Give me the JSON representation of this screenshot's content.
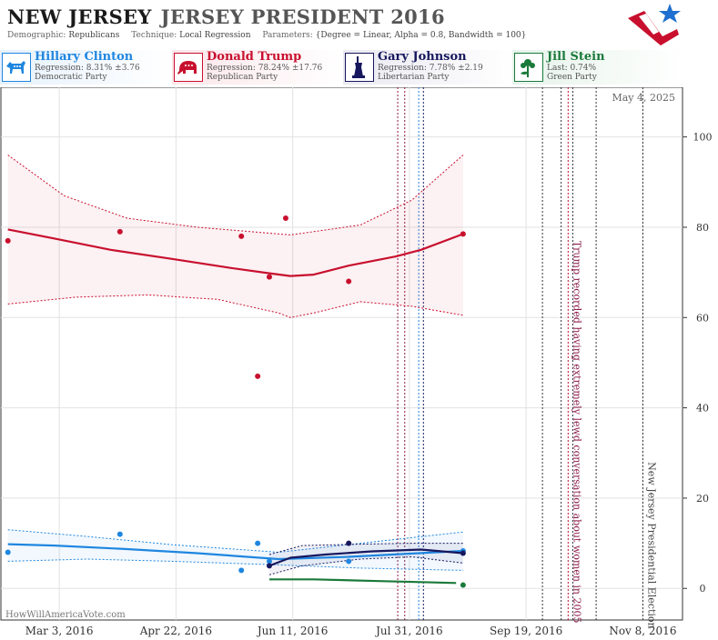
{
  "header": {
    "state": "NEW JERSEY",
    "race": "JERSEY PRESIDENT 2016",
    "demographic_label": "Demographic:",
    "demographic_value": "Republicans",
    "technique_label": "Technique:",
    "technique_value": "Local Regression",
    "parameters_label": "Parameters:",
    "parameters_value": "{Degree = Linear, Alpha = 0.8, Bandwidth = 100}"
  },
  "candidates": [
    {
      "name": "Hillary Clinton",
      "stat": "Regression: 8.31% ±3.76",
      "party": "Democratic Party",
      "color": "#1f86e0",
      "bg": "#e6f1fc",
      "icon": "donkey-icon"
    },
    {
      "name": "Donald Trump",
      "stat": "Regression: 78.24% ±17.76",
      "party": "Republican Party",
      "color": "#c8102e",
      "bg": "#fbe6ea",
      "icon": "elephant-icon"
    },
    {
      "name": "Gary Johnson",
      "stat": "Regression: 7.78% ±2.19",
      "party": "Libertarian Party",
      "color": "#17175e",
      "bg": "#e9e9f1",
      "icon": "statue-of-liberty-icon"
    },
    {
      "name": "Jill Stein",
      "stat": "Last: 0.74%",
      "party": "Green Party",
      "color": "#1a7a3a",
      "bg": "#e6f3ea",
      "icon": "flower-icon"
    }
  ],
  "chart": {
    "date_stamp": "May 4, 2025",
    "watermark": "HowWillAmericaVote.com",
    "annotation_1": "Trump recorded having extremely lewd conversation about women in 2005",
    "annotation_2": "New Jersey Presidential Election"
  },
  "chart_data": {
    "type": "scatter",
    "x_axis": "date",
    "xlim": [
      "2016-02-07",
      "2016-11-25"
    ],
    "ylim": [
      -7,
      111
    ],
    "x_tick_labels": [
      "Mar 3, 2016",
      "Apr 22, 2016",
      "Jun 11, 2016",
      "Jul 31, 2016",
      "Sep 19, 2016",
      "Nov 8, 2016"
    ],
    "x_ticks": [
      "2016-03-03",
      "2016-04-22",
      "2016-06-11",
      "2016-07-31",
      "2016-09-19",
      "2016-11-08"
    ],
    "y_ticks": [
      0,
      20,
      40,
      60,
      80,
      100
    ],
    "grid": true,
    "series": [
      {
        "name": "Donald Trump",
        "color": "#c8102e",
        "points": [
          [
            "2016-02-10",
            77
          ],
          [
            "2016-03-29",
            79
          ],
          [
            "2016-05-20",
            78
          ],
          [
            "2016-05-27",
            47
          ],
          [
            "2016-06-01",
            69
          ],
          [
            "2016-06-08",
            82
          ],
          [
            "2016-07-05",
            68
          ],
          [
            "2016-08-23",
            78.5
          ]
        ],
        "trend": [
          [
            "2016-02-10",
            79.5
          ],
          [
            "2016-03-01",
            77.5
          ],
          [
            "2016-03-25",
            75
          ],
          [
            "2016-04-20",
            73
          ],
          [
            "2016-05-15",
            71
          ],
          [
            "2016-06-01",
            69.8
          ],
          [
            "2016-06-10",
            69.2
          ],
          [
            "2016-06-20",
            69.5
          ],
          [
            "2016-07-05",
            71.5
          ],
          [
            "2016-07-25",
            73.5
          ],
          [
            "2016-08-05",
            75
          ],
          [
            "2016-08-23",
            78.5
          ]
        ],
        "band_upper": [
          [
            "2016-02-10",
            96
          ],
          [
            "2016-03-05",
            87
          ],
          [
            "2016-04-01",
            82
          ],
          [
            "2016-05-01",
            80
          ],
          [
            "2016-06-10",
            78.3
          ],
          [
            "2016-07-10",
            80.5
          ],
          [
            "2016-08-01",
            86
          ],
          [
            "2016-08-23",
            96
          ]
        ],
        "band_lower": [
          [
            "2016-02-10",
            63
          ],
          [
            "2016-03-10",
            64.5
          ],
          [
            "2016-04-10",
            65
          ],
          [
            "2016-05-10",
            64
          ],
          [
            "2016-06-05",
            61
          ],
          [
            "2016-06-10",
            60
          ],
          [
            "2016-06-20",
            61
          ],
          [
            "2016-07-10",
            63.5
          ],
          [
            "2016-08-01",
            62.5
          ],
          [
            "2016-08-23",
            60.5
          ]
        ]
      },
      {
        "name": "Hillary Clinton",
        "color": "#1f86e0",
        "points": [
          [
            "2016-02-10",
            8
          ],
          [
            "2016-03-29",
            12
          ],
          [
            "2016-05-20",
            4
          ],
          [
            "2016-05-27",
            10
          ],
          [
            "2016-06-01",
            6
          ],
          [
            "2016-07-05",
            6
          ],
          [
            "2016-08-23",
            8.3
          ]
        ],
        "trend": [
          [
            "2016-02-10",
            9.8
          ],
          [
            "2016-03-01",
            9.5
          ],
          [
            "2016-04-01",
            8.7
          ],
          [
            "2016-05-01",
            7.8
          ],
          [
            "2016-06-05",
            6.5
          ],
          [
            "2016-07-05",
            7
          ],
          [
            "2016-08-23",
            8.3
          ]
        ],
        "band_upper": [
          [
            "2016-02-10",
            13
          ],
          [
            "2016-03-15",
            11.5
          ],
          [
            "2016-04-20",
            9.7
          ],
          [
            "2016-06-05",
            8
          ],
          [
            "2016-07-10",
            10
          ],
          [
            "2016-08-23",
            12.5
          ]
        ],
        "band_lower": [
          [
            "2016-02-10",
            6
          ],
          [
            "2016-03-15",
            6.5
          ],
          [
            "2016-04-20",
            6
          ],
          [
            "2016-06-05",
            5.2
          ],
          [
            "2016-07-10",
            4.5
          ],
          [
            "2016-08-23",
            4
          ]
        ]
      },
      {
        "name": "Gary Johnson",
        "color": "#17175e",
        "points": [
          [
            "2016-06-01",
            5
          ],
          [
            "2016-07-05",
            10
          ],
          [
            "2016-08-23",
            7.8
          ]
        ],
        "trend": [
          [
            "2016-06-01",
            5
          ],
          [
            "2016-06-10",
            6.8
          ],
          [
            "2016-06-25",
            7.5
          ],
          [
            "2016-07-15",
            8.2
          ],
          [
            "2016-08-05",
            8.6
          ],
          [
            "2016-08-23",
            7.8
          ]
        ],
        "band_upper": [
          [
            "2016-06-01",
            7.5
          ],
          [
            "2016-06-15",
            9.5
          ],
          [
            "2016-07-10",
            9.8
          ],
          [
            "2016-08-01",
            10
          ],
          [
            "2016-08-23",
            10
          ]
        ],
        "band_lower": [
          [
            "2016-06-01",
            3
          ],
          [
            "2016-06-15",
            5
          ],
          [
            "2016-07-10",
            6.5
          ],
          [
            "2016-08-01",
            7
          ],
          [
            "2016-08-23",
            5.6
          ]
        ]
      },
      {
        "name": "Jill Stein",
        "color": "#1a7a3a",
        "points": [
          [
            "2016-08-23",
            0.74
          ]
        ],
        "trend": [
          [
            "2016-06-01",
            2
          ],
          [
            "2016-06-20",
            2
          ],
          [
            "2016-07-20",
            1.6
          ],
          [
            "2016-08-05",
            1.4
          ],
          [
            "2016-08-20",
            1.2
          ]
        ]
      }
    ],
    "event_lines": [
      {
        "date": "2016-07-26",
        "color": "#8b1a4a",
        "style": "dotted"
      },
      {
        "date": "2016-07-29",
        "color": "#8b1a4a",
        "style": "dotted"
      },
      {
        "date": "2016-08-04",
        "color": "#1f86e0",
        "style": "dotted"
      },
      {
        "date": "2016-08-06",
        "color": "#17175e",
        "style": "dotted"
      },
      {
        "date": "2016-09-26",
        "color": "#333333",
        "style": "dotted"
      },
      {
        "date": "2016-10-04",
        "color": "#333333",
        "style": "dotted"
      },
      {
        "date": "2016-10-07",
        "color": "#c8102e",
        "style": "dotted"
      },
      {
        "date": "2016-10-09",
        "color": "#333333",
        "style": "dotted"
      },
      {
        "date": "2016-10-19",
        "color": "#333333",
        "style": "dotted"
      },
      {
        "date": "2016-11-08",
        "color": "#333333",
        "style": "dotted"
      }
    ]
  }
}
